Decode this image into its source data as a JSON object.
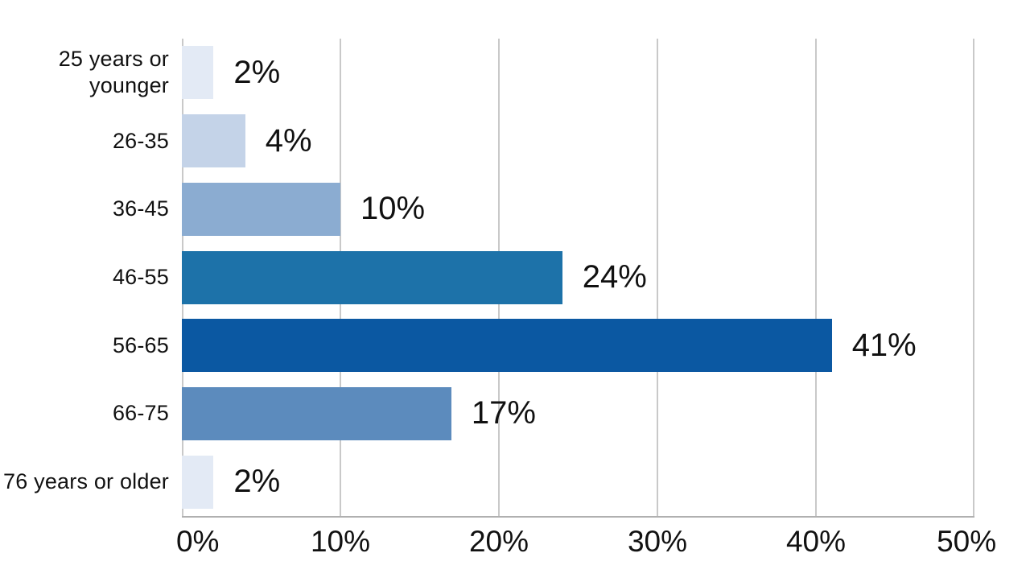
{
  "chart_data": {
    "type": "bar",
    "orientation": "horizontal",
    "title": "",
    "xlabel": "",
    "ylabel": "",
    "categories": [
      "25 years or younger",
      "26-35",
      "36-45",
      "46-55",
      "56-65",
      "66-75",
      "76 years or older"
    ],
    "values": [
      2,
      4,
      10,
      24,
      41,
      17,
      2
    ],
    "value_labels": [
      "2%",
      "4%",
      "10%",
      "24%",
      "41%",
      "17%",
      "2%"
    ],
    "bar_colors": [
      "#e3eaf5",
      "#c4d3e8",
      "#8bacd1",
      "#1d72a9",
      "#0b58a2",
      "#5c8bbd",
      "#e3eaf5"
    ],
    "xlim": [
      0,
      50
    ],
    "x_ticks": [
      "0%",
      "10%",
      "20%",
      "30%",
      "40%",
      "50%"
    ],
    "grid": true,
    "legend": false,
    "gridline_color": "#c9c9c9",
    "axis_line_color": "#b0b0b0",
    "text_color": "#111111",
    "background_color": "#ffffff"
  }
}
